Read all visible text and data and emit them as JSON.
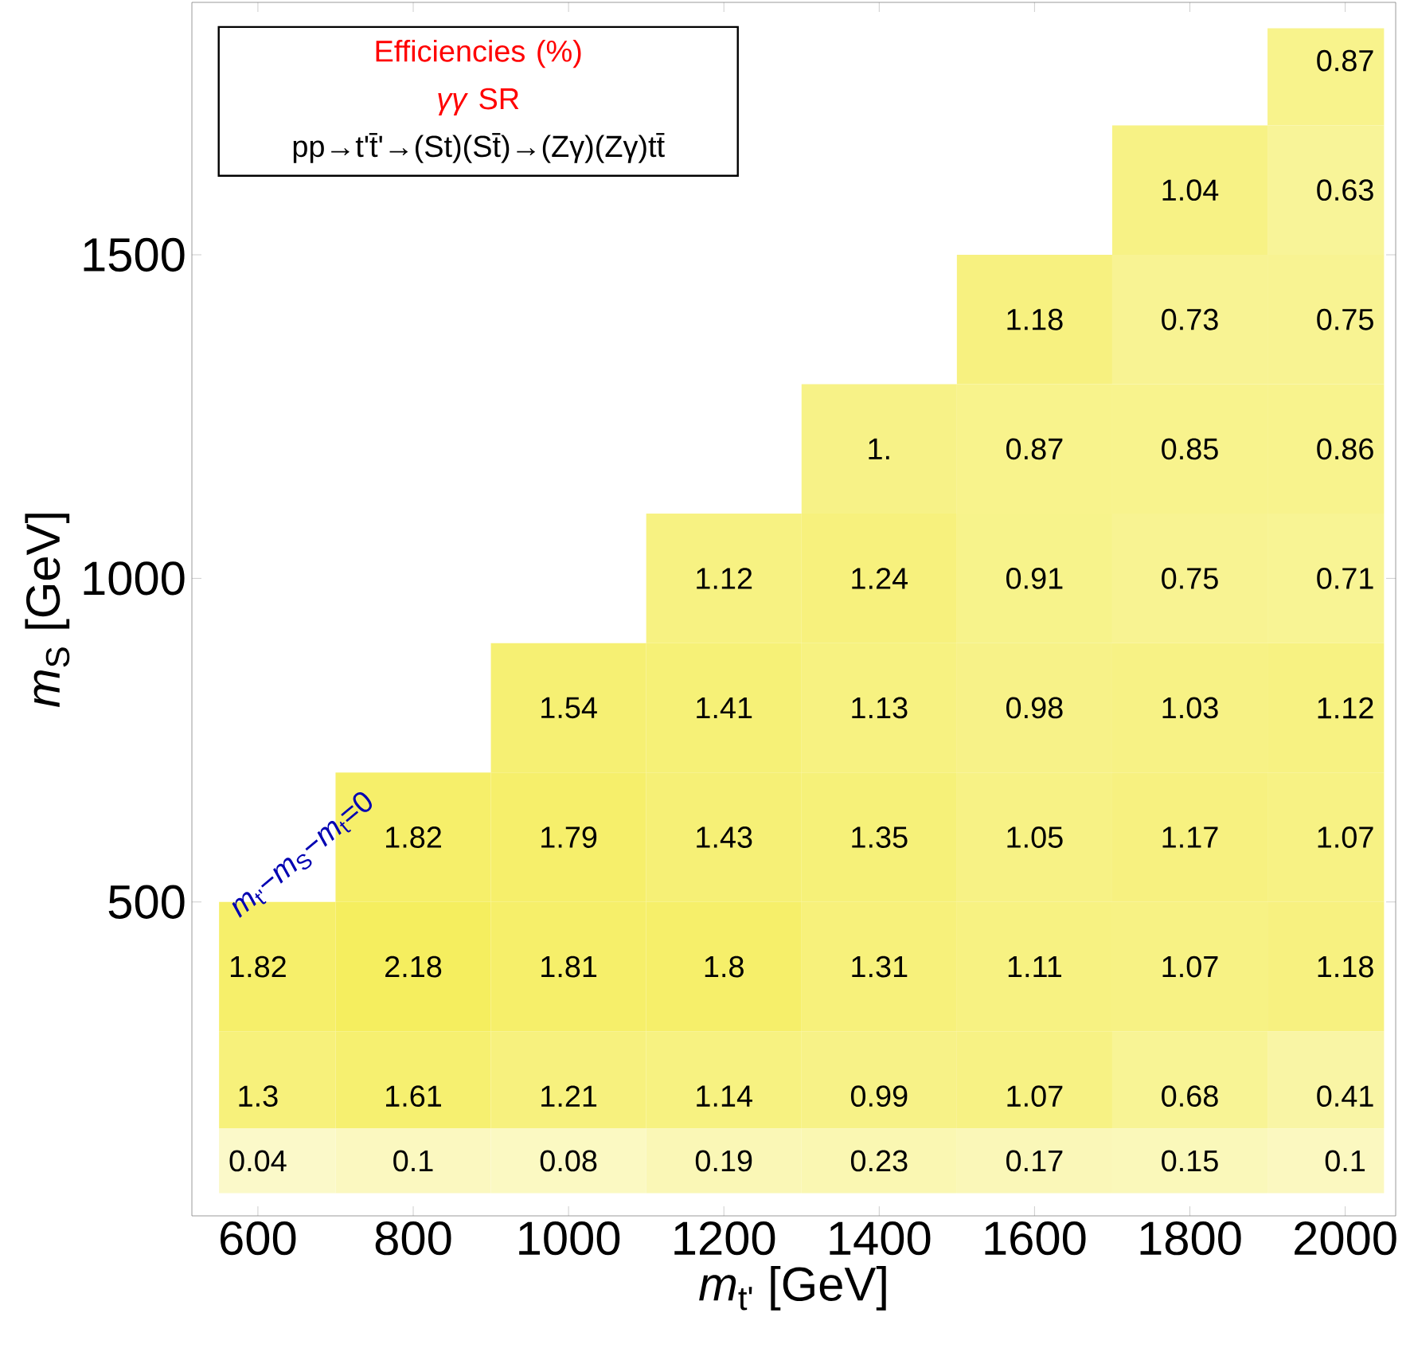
{
  "chart_data": {
    "type": "heatmap",
    "title": "Efficiencies (%)",
    "subtitle": "*γγ* SR",
    "xlabel": "*m*$_{t'}$ [GeV]",
    "ylabel": "*m*$_{S}$ [GeV]",
    "annotations": [
      "pp→t't̄'→(St)(St̄)→(Zγ)(Zγ)tt̄",
      "*m*$_{t'}$−*m*$_{S}$−*m*$_{t}$=0"
    ],
    "x": [
      600,
      800,
      1000,
      1200,
      1400,
      1600,
      1800,
      2000
    ],
    "y": [
      1800,
      1600,
      1400,
      1200,
      1000,
      800,
      600,
      400,
      200,
      100
    ],
    "xlim": [
      515,
      2065
    ],
    "ylim": [
      15,
      1890
    ],
    "xticks": [
      600,
      800,
      1000,
      1200,
      1400,
      1600,
      1800,
      2000
    ],
    "yticks": [
      500,
      1000,
      1500
    ],
    "cells": [
      [
        null,
        null,
        null,
        null,
        null,
        null,
        null,
        0.87
      ],
      [
        null,
        null,
        null,
        null,
        null,
        null,
        1.04,
        0.63
      ],
      [
        null,
        null,
        null,
        null,
        null,
        1.18,
        0.73,
        0.75
      ],
      [
        null,
        null,
        null,
        null,
        1.0,
        0.87,
        0.85,
        0.86
      ],
      [
        null,
        null,
        null,
        1.12,
        1.24,
        0.91,
        0.75,
        0.71
      ],
      [
        null,
        null,
        1.54,
        1.41,
        1.13,
        0.98,
        1.03,
        1.12
      ],
      [
        null,
        1.82,
        1.79,
        1.43,
        1.35,
        1.05,
        1.17,
        1.07
      ],
      [
        1.82,
        2.18,
        1.81,
        1.8,
        1.31,
        1.11,
        1.07,
        1.18
      ],
      [
        1.3,
        1.61,
        1.21,
        1.14,
        0.99,
        1.07,
        0.68,
        0.41
      ],
      [
        0.04,
        0.1,
        0.08,
        0.19,
        0.23,
        0.17,
        0.15,
        0.1
      ]
    ],
    "cell_labels": [
      [
        null,
        null,
        null,
        null,
        null,
        null,
        null,
        "0.87"
      ],
      [
        null,
        null,
        null,
        null,
        null,
        null,
        "1.04",
        "0.63"
      ],
      [
        null,
        null,
        null,
        null,
        null,
        "1.18",
        "0.73",
        "0.75"
      ],
      [
        null,
        null,
        null,
        null,
        "1.",
        "0.87",
        "0.85",
        "0.86"
      ],
      [
        null,
        null,
        null,
        "1.12",
        "1.24",
        "0.91",
        "0.75",
        "0.71"
      ],
      [
        null,
        null,
        "1.54",
        "1.41",
        "1.13",
        "0.98",
        "1.03",
        "1.12"
      ],
      [
        null,
        "1.82",
        "1.79",
        "1.43",
        "1.35",
        "1.05",
        "1.17",
        "1.07"
      ],
      [
        "1.82",
        "2.18",
        "1.81",
        "1.8",
        "1.31",
        "1.11",
        "1.07",
        "1.18"
      ],
      [
        "1.3",
        "1.61",
        "1.21",
        "1.14",
        "0.99",
        "1.07",
        "0.68",
        "0.41"
      ],
      [
        "0.04",
        "0.1",
        "0.08",
        "0.19",
        "0.23",
        "0.17",
        "0.15",
        "0.1"
      ]
    ]
  }
}
